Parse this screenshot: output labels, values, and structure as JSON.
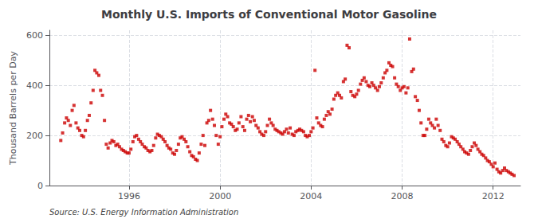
{
  "chart_data": {
    "type": "scatter",
    "title": "Monthly U.S. Imports of Conventional Motor Gasoline",
    "ylabel": "Thousand Barrels per Day",
    "annotation": "Source: U.S. Energy Information Administration",
    "color": "#cc0000",
    "marker": "square",
    "grid": true,
    "xlim": [
      1992.5,
      2013.2
    ],
    "xticks": [
      1996,
      2000,
      2004,
      2008,
      2012
    ],
    "ylim": [
      0,
      620
    ],
    "yticks": [
      0,
      200,
      400,
      600
    ],
    "x": [
      1993.0,
      1993.08,
      1993.17,
      1993.25,
      1993.33,
      1993.42,
      1993.5,
      1993.58,
      1993.67,
      1993.75,
      1993.83,
      1993.92,
      1994.0,
      1994.08,
      1994.17,
      1994.25,
      1994.33,
      1994.42,
      1994.5,
      1994.58,
      1994.67,
      1994.75,
      1994.83,
      1994.92,
      1995.0,
      1995.08,
      1995.17,
      1995.25,
      1995.33,
      1995.42,
      1995.5,
      1995.58,
      1995.67,
      1995.75,
      1995.83,
      1995.92,
      1996.0,
      1996.08,
      1996.17,
      1996.25,
      1996.33,
      1996.42,
      1996.5,
      1996.58,
      1996.67,
      1996.75,
      1996.83,
      1996.92,
      1997.0,
      1997.08,
      1997.17,
      1997.25,
      1997.33,
      1997.42,
      1997.5,
      1997.58,
      1997.67,
      1997.75,
      1997.83,
      1997.92,
      1998.0,
      1998.08,
      1998.17,
      1998.25,
      1998.33,
      1998.42,
      1998.5,
      1998.58,
      1998.67,
      1998.75,
      1998.83,
      1998.92,
      1999.0,
      1999.08,
      1999.17,
      1999.25,
      1999.33,
      1999.42,
      1999.5,
      1999.58,
      1999.67,
      1999.75,
      1999.83,
      1999.92,
      2000.0,
      2000.08,
      2000.17,
      2000.25,
      2000.33,
      2000.42,
      2000.5,
      2000.58,
      2000.67,
      2000.75,
      2000.83,
      2000.92,
      2001.0,
      2001.08,
      2001.17,
      2001.25,
      2001.33,
      2001.42,
      2001.5,
      2001.58,
      2001.67,
      2001.75,
      2001.83,
      2001.92,
      2002.0,
      2002.08,
      2002.17,
      2002.25,
      2002.33,
      2002.42,
      2002.5,
      2002.58,
      2002.67,
      2002.75,
      2002.83,
      2002.92,
      2003.0,
      2003.08,
      2003.17,
      2003.25,
      2003.33,
      2003.42,
      2003.5,
      2003.58,
      2003.67,
      2003.75,
      2003.83,
      2003.92,
      2004.0,
      2004.08,
      2004.17,
      2004.25,
      2004.33,
      2004.42,
      2004.5,
      2004.58,
      2004.67,
      2004.75,
      2004.83,
      2004.92,
      2005.0,
      2005.08,
      2005.17,
      2005.25,
      2005.33,
      2005.42,
      2005.5,
      2005.58,
      2005.67,
      2005.75,
      2005.83,
      2005.92,
      2006.0,
      2006.08,
      2006.17,
      2006.25,
      2006.33,
      2006.42,
      2006.5,
      2006.58,
      2006.67,
      2006.75,
      2006.83,
      2006.92,
      2007.0,
      2007.08,
      2007.17,
      2007.25,
      2007.33,
      2007.42,
      2007.5,
      2007.58,
      2007.67,
      2007.75,
      2007.83,
      2007.92,
      2008.0,
      2008.08,
      2008.17,
      2008.25,
      2008.33,
      2008.42,
      2008.5,
      2008.58,
      2008.67,
      2008.75,
      2008.83,
      2008.92,
      2009.0,
      2009.08,
      2009.17,
      2009.25,
      2009.33,
      2009.42,
      2009.5,
      2009.58,
      2009.67,
      2009.75,
      2009.83,
      2009.92,
      2010.0,
      2010.08,
      2010.17,
      2010.25,
      2010.33,
      2010.42,
      2010.5,
      2010.58,
      2010.67,
      2010.75,
      2010.83,
      2010.92,
      2011.0,
      2011.08,
      2011.17,
      2011.25,
      2011.33,
      2011.42,
      2011.5,
      2011.58,
      2011.67,
      2011.75,
      2011.83,
      2011.92,
      2012.0,
      2012.08,
      2012.17,
      2012.25,
      2012.33,
      2012.42,
      2012.5,
      2012.58,
      2012.67,
      2012.75,
      2012.83,
      2012.92
    ],
    "values": [
      180,
      210,
      250,
      270,
      260,
      240,
      300,
      320,
      250,
      230,
      220,
      200,
      195,
      220,
      260,
      280,
      330,
      380,
      460,
      450,
      440,
      380,
      360,
      260,
      165,
      150,
      170,
      180,
      175,
      160,
      165,
      155,
      145,
      140,
      135,
      130,
      130,
      145,
      175,
      195,
      200,
      185,
      175,
      165,
      155,
      150,
      140,
      135,
      140,
      160,
      190,
      205,
      200,
      195,
      185,
      175,
      160,
      150,
      145,
      130,
      125,
      140,
      165,
      190,
      195,
      185,
      175,
      155,
      135,
      120,
      115,
      105,
      100,
      130,
      165,
      200,
      160,
      250,
      260,
      300,
      265,
      240,
      200,
      165,
      195,
      235,
      265,
      285,
      275,
      250,
      245,
      235,
      220,
      225,
      250,
      275,
      235,
      220,
      265,
      280,
      255,
      275,
      260,
      240,
      230,
      215,
      205,
      200,
      215,
      240,
      265,
      250,
      240,
      225,
      220,
      215,
      210,
      205,
      215,
      225,
      210,
      230,
      205,
      200,
      215,
      220,
      225,
      220,
      215,
      200,
      195,
      200,
      215,
      230,
      460,
      270,
      250,
      240,
      235,
      265,
      280,
      295,
      285,
      305,
      345,
      360,
      370,
      360,
      350,
      415,
      425,
      560,
      550,
      375,
      360,
      355,
      365,
      380,
      405,
      420,
      430,
      415,
      400,
      395,
      410,
      400,
      390,
      380,
      395,
      410,
      430,
      450,
      460,
      490,
      480,
      475,
      430,
      405,
      395,
      380,
      390,
      395,
      370,
      390,
      585,
      455,
      465,
      355,
      340,
      300,
      250,
      200,
      200,
      225,
      265,
      250,
      240,
      230,
      265,
      240,
      220,
      185,
      175,
      160,
      155,
      170,
      195,
      190,
      185,
      175,
      165,
      155,
      145,
      135,
      130,
      125,
      140,
      155,
      170,
      160,
      145,
      135,
      125,
      120,
      110,
      100,
      95,
      85,
      75,
      90,
      65,
      55,
      50,
      60,
      70,
      60,
      55,
      50,
      45,
      40
    ]
  }
}
